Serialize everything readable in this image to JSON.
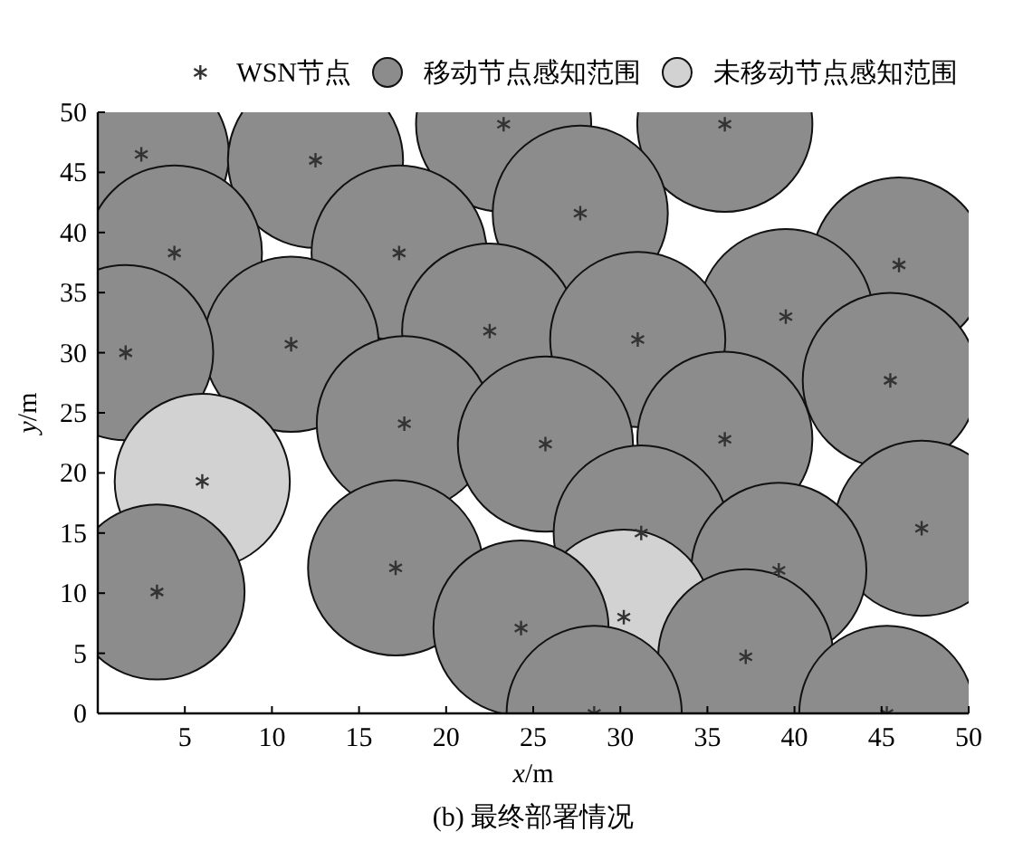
{
  "chart_data": {
    "type": "bubble",
    "xlabel": "*x*/m",
    "ylabel": "*y*/m",
    "annotations": [
      "(b) 最终部署情况"
    ],
    "xlim": [
      0,
      50
    ],
    "ylim": [
      0,
      50
    ],
    "xticks": [
      5,
      10,
      15,
      20,
      25,
      30,
      35,
      40,
      45,
      50
    ],
    "yticks": [
      0,
      5,
      10,
      15,
      20,
      25,
      30,
      35,
      40,
      45,
      50
    ],
    "legend": "top right",
    "grid": false,
    "series": [
      {
        "name": "WSN节点",
        "type": "scatter",
        "marker": "cross",
        "color": "#333333",
        "x": [
          2.5,
          12.5,
          23.3,
          36,
          4.4,
          17.3,
          27.7,
          46,
          1.6,
          11.1,
          22.5,
          31,
          39.5,
          45.5,
          17.6,
          25.7,
          36,
          6,
          31.2,
          47.3,
          39.1,
          3.4,
          17.1,
          30.2,
          24.3,
          37.2,
          28.5,
          45.3
        ],
        "values": [
          46.5,
          46,
          49,
          49,
          38.3,
          38.3,
          41.6,
          37.3,
          30,
          30.7,
          31.8,
          31.1,
          33,
          27.7,
          24.1,
          22.4,
          22.8,
          19.3,
          15,
          15.4,
          11.9,
          10.1,
          12.1,
          8,
          7.1,
          4.7,
          0,
          0
        ]
      },
      {
        "name": "移动节点感知范围",
        "color": "#8c8c8c",
        "x": [
          2.5,
          12.5,
          23.3,
          36,
          4.4,
          17.3,
          27.7,
          46,
          1.6,
          11.1,
          22.5,
          31,
          39.5,
          45.5,
          17.6,
          25.7,
          36,
          31.2,
          47.3,
          39.1,
          3.4,
          17.1,
          24.3,
          37.2,
          28.5,
          45.3
        ],
        "values": [
          46.5,
          46,
          49,
          49,
          38.3,
          38.3,
          41.6,
          37.3,
          30,
          30.7,
          31.8,
          31.1,
          33,
          27.7,
          24.1,
          22.4,
          22.8,
          15,
          15.4,
          11.9,
          10.1,
          12.1,
          7.1,
          4.7,
          0,
          0
        ],
        "sizes": [
          1,
          1,
          1,
          1,
          1,
          1,
          1,
          1,
          1,
          1,
          1,
          1,
          1,
          1,
          1,
          1,
          1,
          1,
          1,
          1,
          1,
          1,
          1,
          1,
          1,
          1
        ]
      },
      {
        "name": "未移动节点感知范围",
        "color": "#d2d2d2",
        "x": [
          6,
          30.2
        ],
        "values": [
          19.3,
          8
        ],
        "sizes": [
          1,
          1
        ]
      }
    ]
  }
}
